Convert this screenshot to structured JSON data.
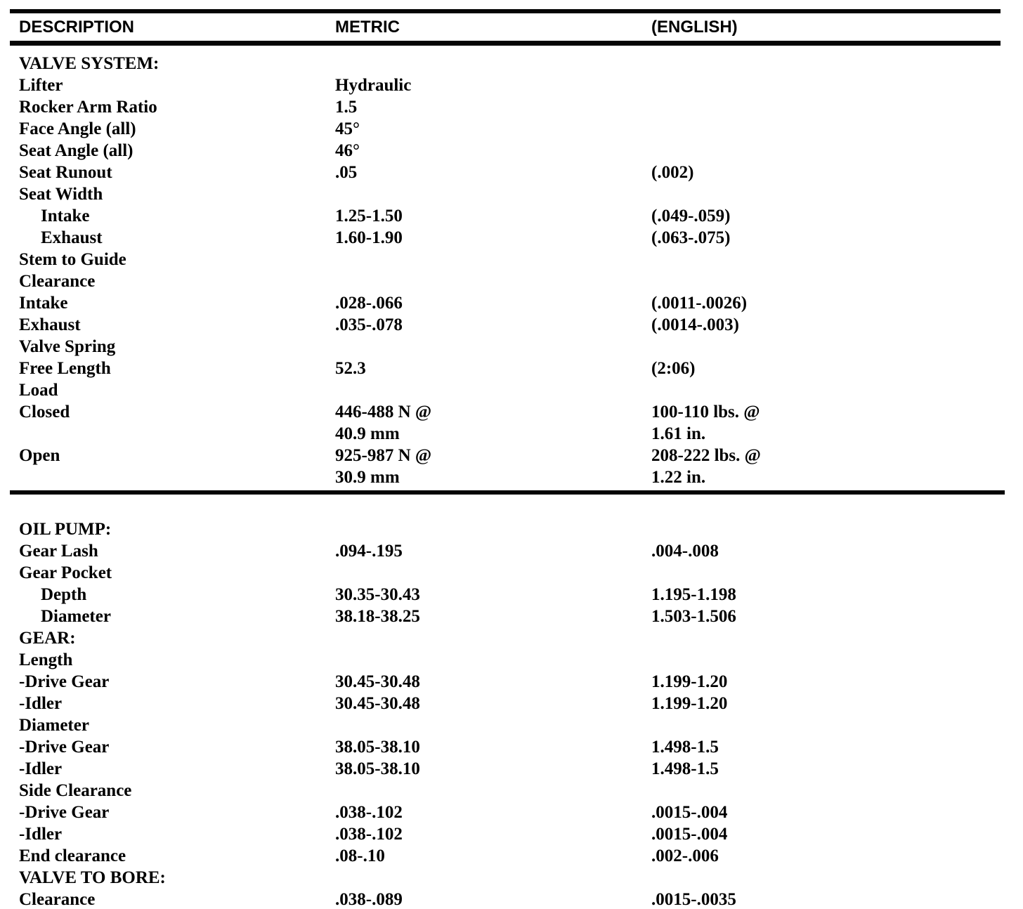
{
  "document": {
    "columns": [
      {
        "label": "DESCRIPTION"
      },
      {
        "label": "METRIC"
      },
      {
        "label": "(ENGLISH)"
      }
    ],
    "sections": [
      {
        "name": "valve-system",
        "rows": [
          {
            "description": "VALVE SYSTEM:",
            "metric": "",
            "english": "",
            "indent": 0
          },
          {
            "description": "Lifter",
            "metric": "Hydraulic",
            "english": "",
            "indent": 0
          },
          {
            "description": "Rocker Arm Ratio",
            "metric": "1.5",
            "english": "",
            "indent": 0
          },
          {
            "description": "Face Angle (all)",
            "metric": "45°",
            "english": "",
            "indent": 0
          },
          {
            "description": "Seat Angle (all)",
            "metric": "46°",
            "english": "",
            "indent": 0
          },
          {
            "description": "Seat Runout",
            "metric": ".05",
            "english": "(.002)",
            "indent": 0
          },
          {
            "description": "Seat Width",
            "metric": "",
            "english": "",
            "indent": 0
          },
          {
            "description": "Intake",
            "metric": "1.25-1.50",
            "english": "(.049-.059)",
            "indent": 1
          },
          {
            "description": "Exhaust",
            "metric": "1.60-1.90",
            "english": "(.063-.075)",
            "indent": 1
          },
          {
            "description": "Stem to Guide",
            "metric": "",
            "english": "",
            "indent": 0
          },
          {
            "description": "Clearance",
            "metric": "",
            "english": "",
            "indent": 0
          },
          {
            "description": "Intake",
            "metric": ".028-.066",
            "english": "(.0011-.0026)",
            "indent": 0
          },
          {
            "description": "Exhaust",
            "metric": ".035-.078",
            "english": "(.0014-.003)",
            "indent": 0
          },
          {
            "description": "Valve Spring",
            "metric": "",
            "english": "",
            "indent": 0
          },
          {
            "description": "Free Length",
            "metric": "52.3",
            "english": "(2:06)",
            "indent": 0
          },
          {
            "description": "Load",
            "metric": "",
            "english": "",
            "indent": 0
          },
          {
            "description": "Closed",
            "metric": "446-488 N @",
            "english": "100-110 lbs. @",
            "indent": 0
          },
          {
            "description": "",
            "metric": "40.9 mm",
            "english": "1.61 in.",
            "indent": 0
          },
          {
            "description": "Open",
            "metric": "925-987 N @",
            "english": "208-222 lbs. @",
            "indent": 0
          },
          {
            "description": "",
            "metric": "30.9 mm",
            "english": "1.22 in.",
            "indent": 0
          }
        ]
      },
      {
        "name": "oil-pump",
        "rows": [
          {
            "description": "OIL PUMP:",
            "metric": "",
            "english": "",
            "indent": 0
          },
          {
            "description": "Gear Lash",
            "metric": ".094-.195",
            "english": ".004-.008",
            "indent": 0
          },
          {
            "description": "Gear Pocket",
            "metric": "",
            "english": "",
            "indent": 0
          },
          {
            "description": "Depth",
            "metric": "30.35-30.43",
            "english": "1.195-1.198",
            "indent": 1
          },
          {
            "description": "Diameter",
            "metric": "38.18-38.25",
            "english": "1.503-1.506",
            "indent": 1
          },
          {
            "description": "GEAR:",
            "metric": "",
            "english": "",
            "indent": 0
          },
          {
            "description": "Length",
            "metric": "",
            "english": "",
            "indent": 0
          },
          {
            "description": "-Drive Gear",
            "metric": "30.45-30.48",
            "english": "1.199-1.20",
            "indent": 0
          },
          {
            "description": "-Idler",
            "metric": "30.45-30.48",
            "english": "1.199-1.20",
            "indent": 0
          },
          {
            "description": "Diameter",
            "metric": "",
            "english": "",
            "indent": 0
          },
          {
            "description": "-Drive Gear",
            "metric": "38.05-38.10",
            "english": "1.498-1.5",
            "indent": 0
          },
          {
            "description": "-Idler",
            "metric": "38.05-38.10",
            "english": "1.498-1.5",
            "indent": 0
          },
          {
            "description": "Side Clearance",
            "metric": "",
            "english": "",
            "indent": 0
          },
          {
            "description": "-Drive Gear",
            "metric": ".038-.102",
            "english": ".0015-.004",
            "indent": 0
          },
          {
            "description": "-Idler",
            "metric": ".038-.102",
            "english": ".0015-.004",
            "indent": 0
          },
          {
            "description": "End clearance",
            "metric": ".08-.10",
            "english": ".002-.006",
            "indent": 0
          },
          {
            "description": "VALVE TO BORE:",
            "metric": "",
            "english": "",
            "indent": 0
          },
          {
            "description": "Clearance",
            "metric": ".038-.089",
            "english": ".0015-.0035",
            "indent": 0
          }
        ]
      }
    ]
  }
}
